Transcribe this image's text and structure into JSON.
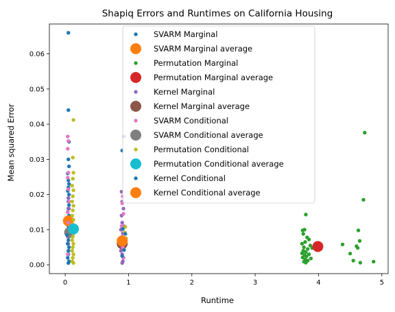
{
  "chart_data": {
    "type": "scatter",
    "title": "Shapiq Errors and Runtimes on California Housing",
    "xlabel": "Runtime",
    "ylabel": "Mean squared Error",
    "xlim": [
      -0.25,
      5.1
    ],
    "ylim": [
      -0.0025,
      0.0685
    ],
    "xticks": [
      "0",
      "1",
      "2",
      "3",
      "4",
      "5"
    ],
    "yticks": [
      "0.00",
      "0.01",
      "0.02",
      "0.03",
      "0.04",
      "0.05",
      "0.06"
    ],
    "grid": false,
    "legend_position": "top-center",
    "series": [
      {
        "name": "SVARM Marginal",
        "color": "#1f77b4",
        "marker": "small",
        "points": [
          [
            0.05,
            0.066
          ],
          [
            0.05,
            0.044
          ],
          [
            0.06,
            0.035
          ],
          [
            0.05,
            0.03
          ],
          [
            0.06,
            0.028
          ],
          [
            0.04,
            0.026
          ],
          [
            0.05,
            0.024
          ],
          [
            0.06,
            0.023
          ],
          [
            0.05,
            0.022
          ],
          [
            0.04,
            0.021
          ],
          [
            0.06,
            0.02
          ],
          [
            0.05,
            0.019
          ],
          [
            0.05,
            0.018
          ],
          [
            0.06,
            0.017
          ],
          [
            0.05,
            0.016
          ],
          [
            0.04,
            0.015
          ],
          [
            0.06,
            0.014
          ],
          [
            0.05,
            0.013
          ],
          [
            0.06,
            0.012
          ],
          [
            0.05,
            0.011
          ],
          [
            0.04,
            0.01
          ],
          [
            0.05,
            0.009
          ],
          [
            0.06,
            0.008
          ],
          [
            0.05,
            0.007
          ],
          [
            0.04,
            0.006
          ],
          [
            0.06,
            0.005
          ],
          [
            0.05,
            0.004
          ],
          [
            0.05,
            0.003
          ],
          [
            0.04,
            0.002
          ],
          [
            0.06,
            0.001
          ],
          [
            0.05,
            0.0005
          ]
        ]
      },
      {
        "name": "SVARM Marginal average",
        "color": "#ff7f0e",
        "marker": "large",
        "points": [
          [
            0.05,
            0.0125
          ]
        ]
      },
      {
        "name": "Permutation Marginal",
        "color": "#2ca02c",
        "marker": "small",
        "points": [
          [
            4.73,
            0.0376
          ],
          [
            4.71,
            0.0185
          ],
          [
            4.63,
            0.0098
          ],
          [
            4.65,
            0.0068
          ],
          [
            4.6,
            0.0053
          ],
          [
            4.62,
            0.0048
          ],
          [
            4.38,
            0.0058
          ],
          [
            4.5,
            0.0032
          ],
          [
            4.55,
            0.0012
          ],
          [
            4.66,
            0.0006
          ],
          [
            4.87,
            0.0009
          ],
          [
            3.8,
            0.0143
          ],
          [
            3.75,
            0.0098
          ],
          [
            3.78,
            0.01
          ],
          [
            3.76,
            0.0088
          ],
          [
            3.82,
            0.0078
          ],
          [
            3.85,
            0.0072
          ],
          [
            3.79,
            0.0065
          ],
          [
            3.74,
            0.006
          ],
          [
            3.87,
            0.0055
          ],
          [
            3.77,
            0.005
          ],
          [
            3.9,
            0.0048
          ],
          [
            3.83,
            0.0045
          ],
          [
            3.76,
            0.004
          ],
          [
            3.8,
            0.0036
          ],
          [
            3.74,
            0.0033
          ],
          [
            3.85,
            0.003
          ],
          [
            3.78,
            0.0027
          ],
          [
            3.81,
            0.0024
          ],
          [
            3.75,
            0.0021
          ],
          [
            3.88,
            0.0018
          ],
          [
            3.79,
            0.0015
          ],
          [
            3.83,
            0.0012
          ],
          [
            3.77,
            0.0009
          ],
          [
            3.8,
            0.0006
          ],
          [
            3.95,
            0.0052
          ]
        ]
      },
      {
        "name": "Permutation Marginal average",
        "color": "#d62728",
        "marker": "large",
        "points": [
          [
            3.99,
            0.0052
          ]
        ]
      },
      {
        "name": "Kernel Marginal",
        "color": "#9467bd",
        "marker": "small",
        "points": [
          [
            0.93,
            0.0365
          ],
          [
            0.89,
            0.0208
          ],
          [
            0.91,
            0.0195
          ],
          [
            0.9,
            0.018
          ],
          [
            0.92,
            0.016
          ],
          [
            0.89,
            0.014
          ],
          [
            0.9,
            0.012
          ],
          [
            0.93,
            0.011
          ],
          [
            0.88,
            0.01
          ],
          [
            0.91,
            0.009
          ],
          [
            0.9,
            0.008
          ],
          [
            0.92,
            0.007
          ],
          [
            0.89,
            0.006
          ],
          [
            0.91,
            0.005
          ],
          [
            0.88,
            0.004
          ],
          [
            0.9,
            0.003
          ],
          [
            0.92,
            0.002
          ],
          [
            0.91,
            0.001
          ],
          [
            0.9,
            0.0005
          ],
          [
            0.05,
            0.019
          ],
          [
            0.06,
            0.016
          ],
          [
            0.05,
            0.012
          ],
          [
            0.04,
            0.008
          ]
        ]
      },
      {
        "name": "Kernel Marginal average",
        "color": "#8c564b",
        "marker": "large",
        "points": [
          [
            0.9,
            0.006
          ]
        ]
      },
      {
        "name": "SVARM Conditional",
        "color": "#e377c2",
        "marker": "small",
        "points": [
          [
            0.04,
            0.0365
          ],
          [
            0.05,
            0.0352
          ],
          [
            0.04,
            0.033
          ],
          [
            0.05,
            0.0262
          ],
          [
            0.04,
            0.0248
          ],
          [
            0.05,
            0.0215
          ],
          [
            0.06,
            0.018
          ],
          [
            0.04,
            0.015
          ],
          [
            0.05,
            0.012
          ],
          [
            0.06,
            0.009
          ],
          [
            0.05,
            0.006
          ],
          [
            0.04,
            0.003
          ],
          [
            0.91,
            0.0195
          ],
          [
            0.9,
            0.0175
          ],
          [
            0.92,
            0.0145
          ],
          [
            0.89,
            0.011
          ],
          [
            0.9,
            0.008
          ],
          [
            0.91,
            0.005
          ],
          [
            0.92,
            0.002
          ]
        ]
      },
      {
        "name": "SVARM Conditional average",
        "color": "#7f7f7f",
        "marker": "large",
        "points": [
          [
            0.07,
            0.0092
          ]
        ]
      },
      {
        "name": "Permutation Conditional",
        "color": "#bcbd22",
        "marker": "small",
        "points": [
          [
            0.13,
            0.0412
          ],
          [
            0.12,
            0.0305
          ],
          [
            0.13,
            0.0262
          ],
          [
            0.12,
            0.0245
          ],
          [
            0.11,
            0.0225
          ],
          [
            0.13,
            0.0212
          ],
          [
            0.12,
            0.0195
          ],
          [
            0.11,
            0.018
          ],
          [
            0.13,
            0.0168
          ],
          [
            0.12,
            0.0155
          ],
          [
            0.11,
            0.014
          ],
          [
            0.13,
            0.0128
          ],
          [
            0.12,
            0.0115
          ],
          [
            0.11,
            0.01
          ],
          [
            0.13,
            0.009
          ],
          [
            0.12,
            0.008
          ],
          [
            0.11,
            0.007
          ],
          [
            0.13,
            0.006
          ],
          [
            0.12,
            0.005
          ],
          [
            0.11,
            0.004
          ],
          [
            0.13,
            0.003
          ],
          [
            0.12,
            0.002
          ],
          [
            0.11,
            0.001
          ],
          [
            0.13,
            0.0005
          ],
          [
            0.95,
            0.0108
          ],
          [
            0.94,
            0.0092
          ],
          [
            0.96,
            0.0075
          ]
        ]
      },
      {
        "name": "Permutation Conditional average",
        "color": "#17becf",
        "marker": "large",
        "points": [
          [
            0.13,
            0.0102
          ]
        ]
      },
      {
        "name": "Kernel Conditional",
        "color": "#1f77b4",
        "marker": "small",
        "points": [
          [
            0.9,
            0.0325
          ],
          [
            0.91,
            0.0102
          ],
          [
            0.95,
            0.0088
          ],
          [
            0.92,
            0.0062
          ],
          [
            0.93,
            0.0042
          ],
          [
            0.9,
            0.0025
          ],
          [
            0.03,
            0.0085
          ],
          [
            0.04,
            0.006
          ],
          [
            0.05,
            0.004
          ]
        ]
      },
      {
        "name": "Kernel Conditional average",
        "color": "#ff7f0e",
        "marker": "large",
        "points": [
          [
            0.9,
            0.0068
          ]
        ]
      }
    ]
  }
}
